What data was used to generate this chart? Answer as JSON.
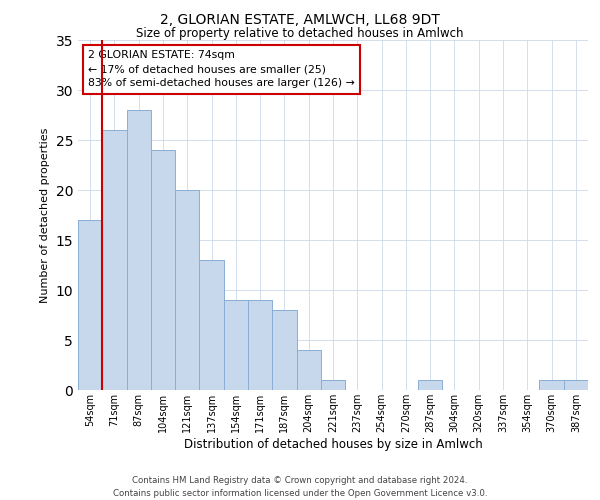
{
  "title1": "2, GLORIAN ESTATE, AMLWCH, LL68 9DT",
  "title2": "Size of property relative to detached houses in Amlwch",
  "xlabel": "Distribution of detached houses by size in Amlwch",
  "ylabel": "Number of detached properties",
  "categories": [
    "54sqm",
    "71sqm",
    "87sqm",
    "104sqm",
    "121sqm",
    "137sqm",
    "154sqm",
    "171sqm",
    "187sqm",
    "204sqm",
    "221sqm",
    "237sqm",
    "254sqm",
    "270sqm",
    "287sqm",
    "304sqm",
    "320sqm",
    "337sqm",
    "354sqm",
    "370sqm",
    "387sqm"
  ],
  "values": [
    17,
    26,
    28,
    24,
    20,
    13,
    9,
    9,
    8,
    4,
    1,
    0,
    0,
    0,
    1,
    0,
    0,
    0,
    0,
    1,
    1
  ],
  "bar_color": "#c8d8ec",
  "bar_edge_color": "#8aaed4",
  "subject_line_index": 1,
  "subject_line_color": "#cc0000",
  "ylim": [
    0,
    35
  ],
  "yticks": [
    0,
    5,
    10,
    15,
    20,
    25,
    30,
    35
  ],
  "annotation_text": "2 GLORIAN ESTATE: 74sqm\n← 17% of detached houses are smaller (25)\n83% of semi-detached houses are larger (126) →",
  "annotation_box_color": "#ffffff",
  "annotation_box_edge_color": "#cc0000",
  "footer1": "Contains HM Land Registry data © Crown copyright and database right 2024.",
  "footer2": "Contains public sector information licensed under the Open Government Licence v3.0.",
  "background_color": "#ffffff",
  "grid_color": "#cdd8e8"
}
